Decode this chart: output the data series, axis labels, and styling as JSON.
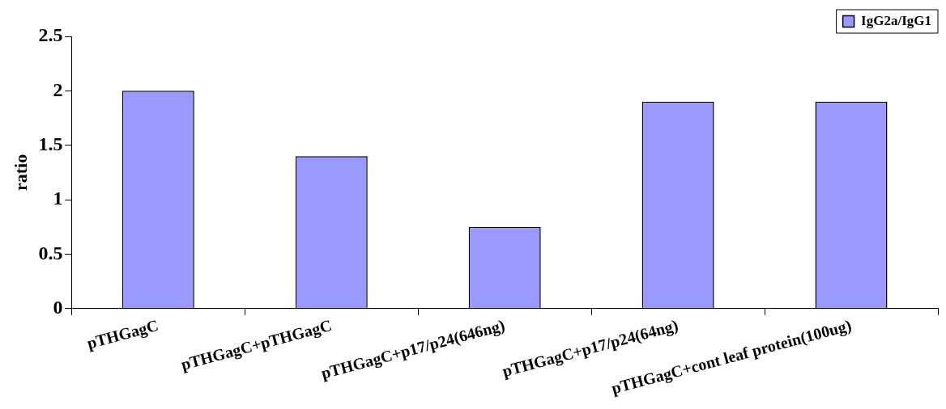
{
  "chart_data": {
    "type": "bar",
    "ylabel": "ratio",
    "categories": [
      "pTHGagC",
      "pTHGagC+pTHGagC",
      "pTHGagC+p17/p24(646ng)",
      "pTHGagC+p17/p24(64ng)",
      "pTHGagC+cont leaf protein(100ug)"
    ],
    "series": [
      {
        "name": "IgG2a/IgG1",
        "color": "#9999ff",
        "values": [
          2.0,
          1.4,
          0.75,
          1.9,
          1.9
        ]
      }
    ],
    "ylim": [
      0,
      2.5
    ],
    "yticks": [
      0,
      0.5,
      1,
      1.5,
      2,
      2.5
    ],
    "grid": false,
    "legend": "top right"
  }
}
